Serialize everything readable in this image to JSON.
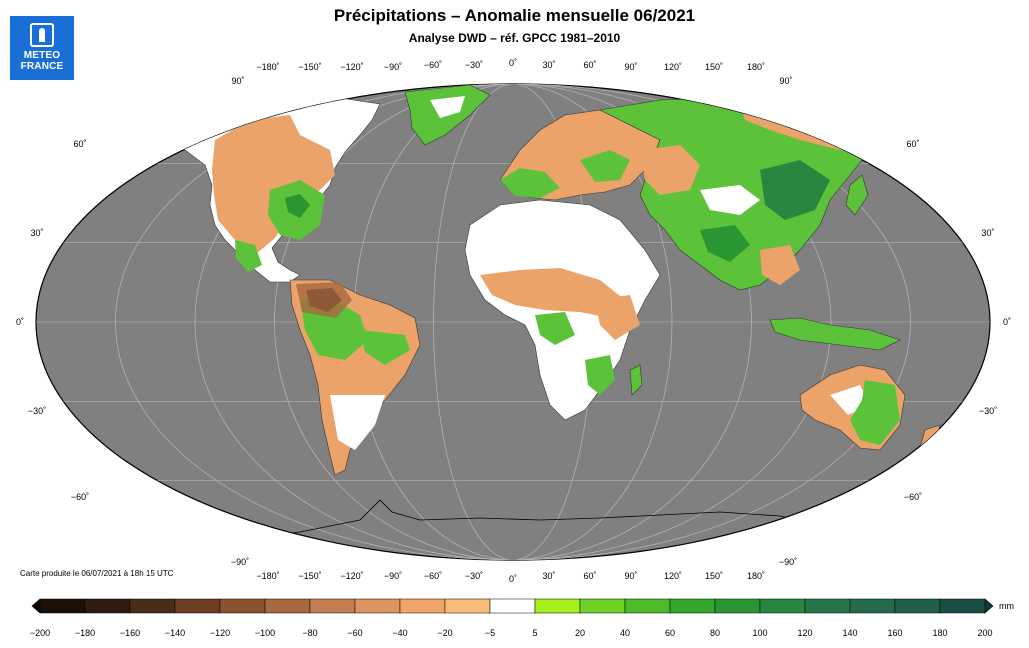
{
  "title": "Précipitations – Anomalie mensuelle 06/2021",
  "subtitle": "Analyse DWD – réf. GPCC 1981–2010",
  "logo": {
    "line1": "METEO",
    "line2": "FRANCE"
  },
  "produced": "Carte produite le 06/07/2021 à 18h 15 UTC",
  "lon_ticks_top": [
    "−180˚",
    "−150˚",
    "−120˚",
    "−90˚",
    "−60˚",
    "−30˚",
    "0˚",
    "30˚",
    "60˚",
    "90˚",
    "120˚",
    "150˚",
    "180˚"
  ],
  "lon_ticks_bottom": [
    "−180˚",
    "−150˚",
    "−120˚",
    "−90˚",
    "−60˚",
    "−30˚",
    "0˚",
    "30˚",
    "60˚",
    "90˚",
    "120˚",
    "150˚",
    "180˚"
  ],
  "lat_ticks": [
    {
      "label": "90˚",
      "lat": 90
    },
    {
      "label": "60˚",
      "lat": 60
    },
    {
      "label": "30˚",
      "lat": 30
    },
    {
      "label": "0˚",
      "lat": 0
    },
    {
      "label": "−30˚",
      "lat": -30
    },
    {
      "label": "−60˚",
      "lat": -60
    },
    {
      "label": "−90˚",
      "lat": -90
    }
  ],
  "colorbar": {
    "unit": "mm",
    "labels": [
      "−200",
      "−180",
      "−160",
      "−140",
      "−120",
      "−100",
      "−80",
      "−60",
      "−40",
      "−20",
      "−5",
      "5",
      "20",
      "40",
      "60",
      "80",
      "100",
      "120",
      "140",
      "160",
      "180",
      "200"
    ],
    "colors": [
      "#1a1008",
      "#2e1c10",
      "#4a2c18",
      "#6b3e22",
      "#8a5230",
      "#a86840",
      "#c47e52",
      "#dc9460",
      "#f0a468",
      "#f8bc78",
      "#ffffff",
      "#a6f01e",
      "#6ed226",
      "#4cbc28",
      "#34a82a",
      "#2a9632",
      "#28863e",
      "#26764a",
      "#246a4c",
      "#205e4a",
      "#1a4e44"
    ],
    "under_color": "#000000",
    "over_color": "#143c34"
  },
  "colors": {
    "ocean": "#808080",
    "land_neutral": "#ffffff",
    "wet": "#5cc23a",
    "dry": "#eba36a",
    "grid": "#b4b4b4"
  }
}
